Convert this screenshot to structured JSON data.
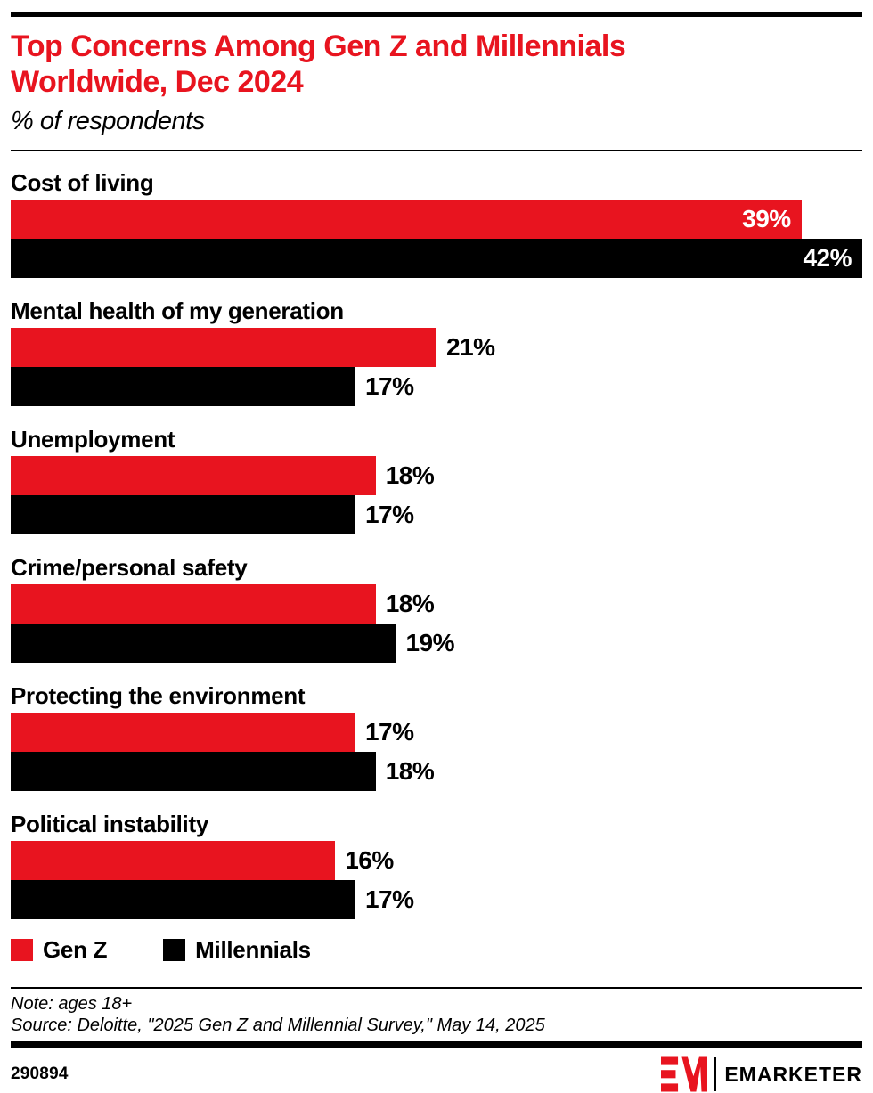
{
  "header": {
    "title": "Top Concerns Among Gen Z and Millennials Worldwide, Dec 2024",
    "subtitle": "% of respondents"
  },
  "chart_data": {
    "type": "bar",
    "orientation": "horizontal",
    "unit": "%",
    "categories": [
      "Cost of living",
      "Mental health of my generation",
      "Unemployment",
      "Crime/personal safety",
      "Protecting the environment",
      "Political instability"
    ],
    "series": [
      {
        "name": "Gen Z",
        "color": "#E8141F",
        "values": [
          39,
          21,
          18,
          18,
          17,
          16
        ]
      },
      {
        "name": "Millennials",
        "color": "#000000",
        "values": [
          42,
          17,
          17,
          19,
          18,
          17
        ]
      }
    ],
    "xlim": [
      0,
      42
    ],
    "grid": false,
    "value_label_format": "{v}%",
    "legend_position": "bottom"
  },
  "legend": {
    "items": [
      {
        "label": "Gen Z",
        "color": "#E8141F"
      },
      {
        "label": "Millennials",
        "color": "#000000"
      }
    ]
  },
  "notes": {
    "note": "Note: ages 18+",
    "source": "Source: Deloitte, \"2025 Gen Z and Millennial Survey,\" May 14, 2025"
  },
  "footer": {
    "chart_id": "290894",
    "brand_name": "EMARKETER",
    "brand_red": "#E8141F"
  }
}
